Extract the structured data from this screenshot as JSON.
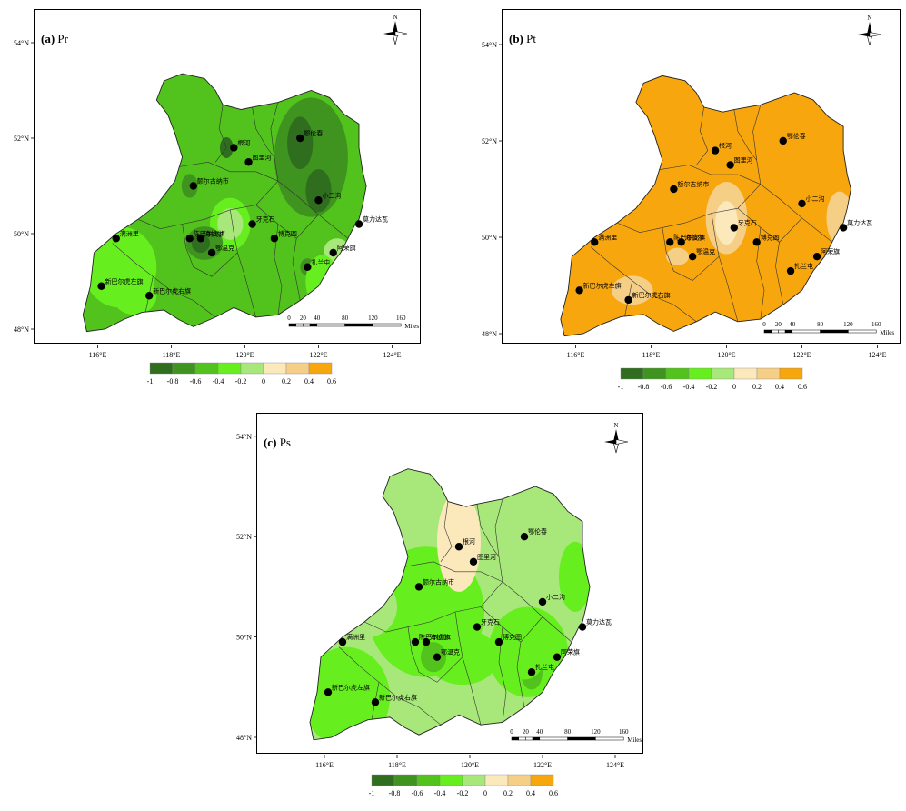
{
  "panels": [
    {
      "id": "a",
      "letter": "(a)",
      "var": "Pr",
      "lat_labels": [
        "54°N",
        "52°N",
        "50°N",
        "48°N"
      ],
      "lon_labels": [
        "116°E",
        "118°E",
        "120°E",
        "122°E",
        "124°E"
      ]
    },
    {
      "id": "b",
      "letter": "(b)",
      "var": "Pt",
      "lat_labels": [
        "54°N",
        "52°N",
        "50°N",
        "48°N"
      ],
      "lon_labels": [
        "116°E",
        "118°E",
        "120°E",
        "122°E",
        "124°E"
      ]
    },
    {
      "id": "c",
      "letter": "(c)",
      "var": "Ps",
      "lat_labels": [
        "54°N",
        "52°N",
        "50°N",
        "48°N"
      ],
      "lon_labels": [
        "116°E",
        "118°E",
        "120°E",
        "122°E",
        "124°E"
      ]
    }
  ],
  "north_arrow_label": "N",
  "scale_bar": {
    "ticks": [
      "0",
      "20",
      "40",
      "80",
      "120",
      "160"
    ],
    "unit": "Miles"
  },
  "stations": [
    {
      "name": "鄂伦春",
      "lon": 121.5,
      "lat": 52.0
    },
    {
      "name": "根河",
      "lon": 119.7,
      "lat": 51.8
    },
    {
      "name": "图里河",
      "lon": 120.1,
      "lat": 51.5
    },
    {
      "name": "额尔古纳市",
      "lon": 118.6,
      "lat": 51.0
    },
    {
      "name": "小二沟",
      "lon": 122.0,
      "lat": 50.7
    },
    {
      "name": "莫力达瓦",
      "lon": 123.1,
      "lat": 50.2
    },
    {
      "name": "牙克石",
      "lon": 120.2,
      "lat": 50.2
    },
    {
      "name": "满洲里",
      "lon": 116.5,
      "lat": 49.9
    },
    {
      "name": "陈巴尔虎旗",
      "lon": 118.5,
      "lat": 49.9
    },
    {
      "name": "海拉尔",
      "lon": 118.8,
      "lat": 49.9
    },
    {
      "name": "博克图",
      "lon": 120.8,
      "lat": 49.9
    },
    {
      "name": "鄂温克",
      "lon": 119.1,
      "lat": 49.6
    },
    {
      "name": "阿荣旗",
      "lon": 122.4,
      "lat": 49.6
    },
    {
      "name": "扎兰屯",
      "lon": 121.7,
      "lat": 49.3
    },
    {
      "name": "新巴尔虎左旗",
      "lon": 116.1,
      "lat": 48.9
    },
    {
      "name": "新巴尔虎右旗",
      "lon": 117.4,
      "lat": 48.7
    }
  ],
  "legend": {
    "colors": [
      "#2e6e1e",
      "#3f9420",
      "#52c21c",
      "#66ee1e",
      "#a8e87a",
      "#fbe9bc",
      "#f6cf86",
      "#f7a60e"
    ],
    "labels": [
      "-1",
      "-0.8",
      "-0.6",
      "-0.4",
      "-0.2",
      "0",
      "0.2",
      "0.4",
      "0.6"
    ]
  }
}
